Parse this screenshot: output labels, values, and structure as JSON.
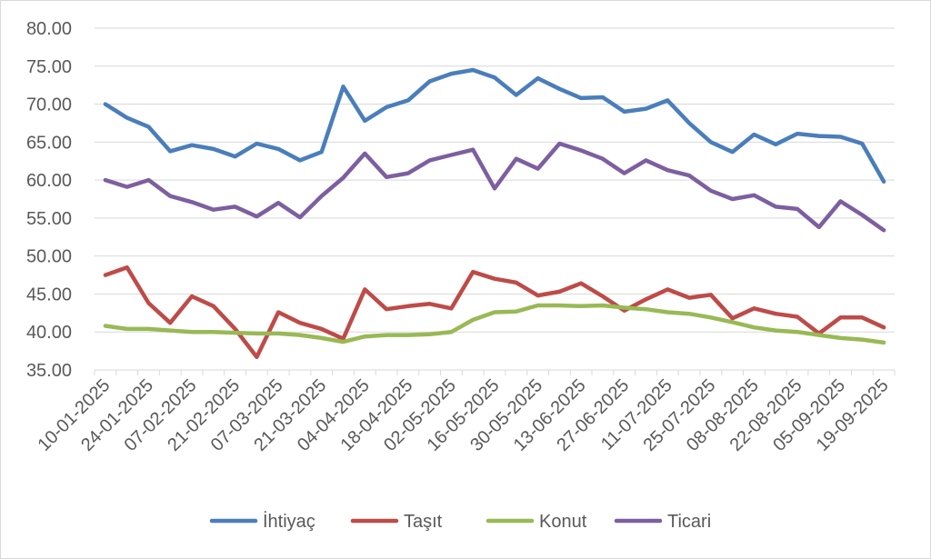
{
  "chart_data": {
    "type": "line",
    "title": "",
    "xlabel": "",
    "ylabel": "",
    "ylim": [
      35,
      80
    ],
    "ytick_step": 5,
    "y_tick_labels": [
      "35.00",
      "40.00",
      "45.00",
      "50.00",
      "55.00",
      "60.00",
      "65.00",
      "70.00",
      "75.00",
      "80.00"
    ],
    "grid": "horizontal",
    "legend_position": "bottom",
    "x": [
      "10-01-2025",
      "17-01-2025",
      "24-01-2025",
      "31-01-2025",
      "07-02-2025",
      "14-02-2025",
      "21-02-2025",
      "28-02-2025",
      "07-03-2025",
      "14-03-2025",
      "21-03-2025",
      "28-03-2025",
      "04-04-2025",
      "11-04-2025",
      "18-04-2025",
      "25-04-2025",
      "02-05-2025",
      "09-05-2025",
      "16-05-2025",
      "23-05-2025",
      "30-05-2025",
      "06-06-2025",
      "13-06-2025",
      "20-06-2025",
      "27-06-2025",
      "04-07-2025",
      "11-07-2025",
      "18-07-2025",
      "25-07-2025",
      "01-08-2025",
      "08-08-2025",
      "15-08-2025",
      "22-08-2025",
      "29-08-2025",
      "05-09-2025",
      "12-09-2025",
      "19-09-2025"
    ],
    "x_tick_labels": [
      "10-01-2025",
      "24-01-2025",
      "07-02-2025",
      "21-02-2025",
      "07-03-2025",
      "21-03-2025",
      "04-04-2025",
      "18-04-2025",
      "02-05-2025",
      "16-05-2025",
      "30-05-2025",
      "13-06-2025",
      "27-06-2025",
      "11-07-2025",
      "25-07-2025",
      "08-08-2025",
      "22-08-2025",
      "05-09-2025",
      "19-09-2025"
    ],
    "series": [
      {
        "name": "İhtiyaç",
        "color": "#4a7ebb",
        "values": [
          70.0,
          68.2,
          67.0,
          63.8,
          64.6,
          64.1,
          63.1,
          64.8,
          64.1,
          62.6,
          63.7,
          72.3,
          67.8,
          69.6,
          70.5,
          73.0,
          74.0,
          74.5,
          73.5,
          71.2,
          73.4,
          72.0,
          70.8,
          70.9,
          69.0,
          69.4,
          70.5,
          67.5,
          65.0,
          63.7,
          66.0,
          64.7,
          66.1,
          65.8,
          65.7,
          64.8,
          59.8
        ]
      },
      {
        "name": "Taşıt",
        "color": "#be4b48",
        "values": [
          47.5,
          48.5,
          43.8,
          41.2,
          44.7,
          43.4,
          40.4,
          36.7,
          42.6,
          41.2,
          40.4,
          39.1,
          45.6,
          43.0,
          43.4,
          43.7,
          43.1,
          47.9,
          47.0,
          46.5,
          44.8,
          45.3,
          46.4,
          44.7,
          42.8,
          44.3,
          45.6,
          44.5,
          44.9,
          41.8,
          43.1,
          42.4,
          42.0,
          39.8,
          41.9,
          41.9,
          40.6
        ]
      },
      {
        "name": "Konut",
        "color": "#98b954",
        "values": [
          40.8,
          40.4,
          40.4,
          40.2,
          40.0,
          40.0,
          39.9,
          39.8,
          39.8,
          39.6,
          39.2,
          38.7,
          39.4,
          39.6,
          39.6,
          39.7,
          40.0,
          41.6,
          42.6,
          42.7,
          43.5,
          43.5,
          43.4,
          43.5,
          43.2,
          43.0,
          42.6,
          42.4,
          41.9,
          41.3,
          40.6,
          40.2,
          40.0,
          39.6,
          39.2,
          39.0,
          38.6
        ]
      },
      {
        "name": "Ticari",
        "color": "#7d5fa0",
        "values": [
          60.0,
          59.1,
          60.0,
          57.9,
          57.1,
          56.1,
          56.5,
          55.2,
          57.0,
          55.1,
          57.9,
          60.3,
          63.5,
          60.4,
          60.9,
          62.6,
          63.3,
          64.0,
          58.9,
          62.8,
          61.5,
          64.8,
          63.9,
          62.8,
          60.9,
          62.6,
          61.3,
          60.6,
          58.6,
          57.5,
          58.0,
          56.5,
          56.2,
          53.8,
          57.2,
          55.4,
          53.4
        ]
      }
    ]
  }
}
